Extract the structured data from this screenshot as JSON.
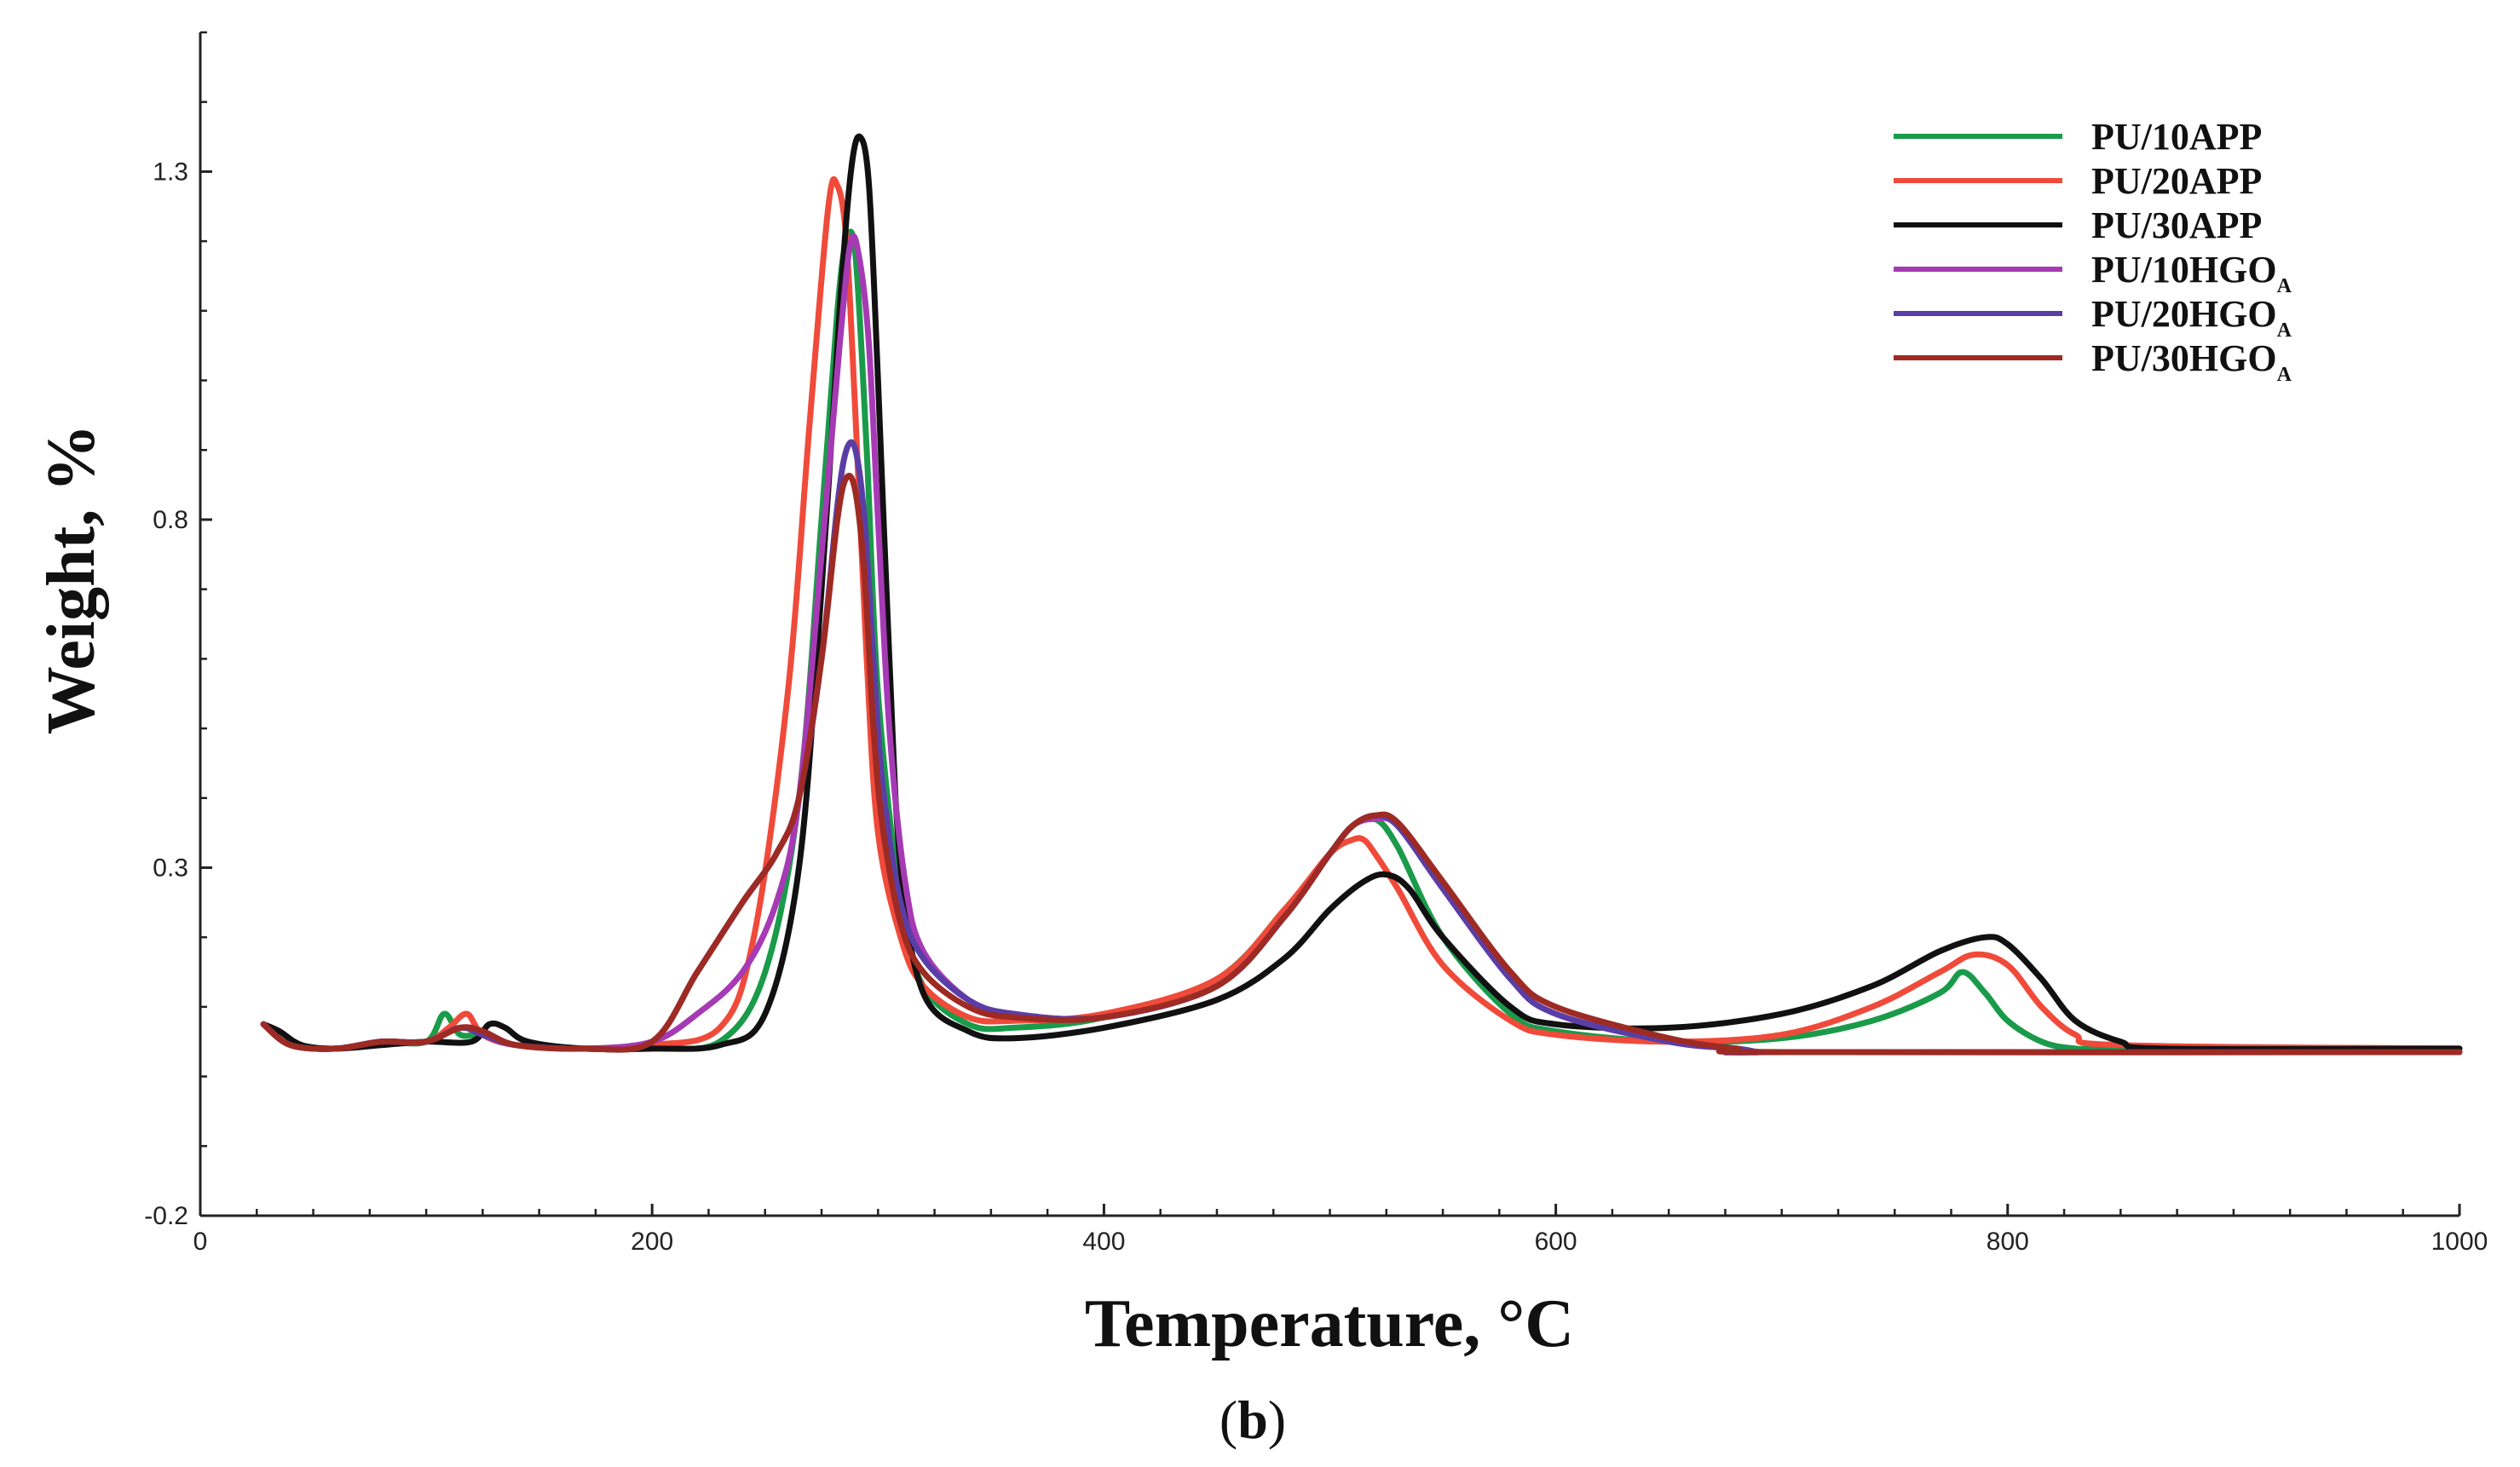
{
  "chart_data": {
    "type": "line",
    "title": "",
    "xlabel": "Temperature, °C",
    "ylabel": "Weight, %",
    "caption_prefix": "(",
    "caption_letter": "b",
    "caption_suffix": ")",
    "xlim": [
      0,
      1000
    ],
    "ylim": [
      -0.2,
      1.5
    ],
    "xticks": [
      0,
      200,
      400,
      600,
      800,
      1000
    ],
    "yticks": [
      -0.2,
      0.3,
      0.8,
      1.3
    ],
    "xtick_labels": [
      "0",
      "200",
      "400",
      "600",
      "800",
      "1000"
    ],
    "ytick_labels": [
      "-0.2",
      "0.3",
      "0.8",
      "1.3"
    ],
    "grid": false,
    "legend_position": "top-right",
    "series": [
      {
        "name": "PU/10APP",
        "label_main": "PU/10APP",
        "label_sub": "",
        "color": "#1a9b4a",
        "x": [
          28,
          40,
          60,
          80,
          100,
          108,
          115,
          125,
          140,
          170,
          200,
          230,
          250,
          265,
          275,
          282,
          286,
          290,
          295,
          300,
          310,
          320,
          340,
          360,
          400,
          450,
          480,
          500,
          510,
          520,
          530,
          550,
          580,
          600,
          650,
          700,
          740,
          770,
          780,
          790,
          800,
          815,
          830,
          850,
          1000
        ],
        "y": [
          0.075,
          0.045,
          0.04,
          0.05,
          0.05,
          0.09,
          0.06,
          0.06,
          0.045,
          0.04,
          0.042,
          0.05,
          0.15,
          0.4,
          0.8,
          1.1,
          1.2,
          1.18,
          0.9,
          0.55,
          0.25,
          0.13,
          0.075,
          0.07,
          0.085,
          0.14,
          0.24,
          0.32,
          0.36,
          0.37,
          0.33,
          0.2,
          0.09,
          0.065,
          0.05,
          0.055,
          0.08,
          0.12,
          0.15,
          0.12,
          0.08,
          0.05,
          0.04,
          0.04,
          0.04
        ]
      },
      {
        "name": "PU/20APP",
        "label_main": "PU/20APP",
        "label_sub": "",
        "color": "#f04a3a",
        "x": [
          28,
          40,
          60,
          80,
          100,
          110,
          118,
          125,
          140,
          170,
          200,
          230,
          245,
          260,
          270,
          278,
          282,
          286,
          290,
          295,
          300,
          310,
          320,
          340,
          360,
          400,
          450,
          480,
          500,
          510,
          515,
          520,
          530,
          550,
          580,
          600,
          650,
          700,
          740,
          770,
          785,
          800,
          815,
          830,
          850,
          1000
        ],
        "y": [
          0.075,
          0.045,
          0.04,
          0.05,
          0.05,
          0.07,
          0.09,
          0.06,
          0.045,
          0.04,
          0.045,
          0.07,
          0.2,
          0.55,
          0.95,
          1.25,
          1.28,
          1.2,
          0.95,
          0.6,
          0.35,
          0.2,
          0.13,
          0.085,
          0.08,
          0.09,
          0.14,
          0.24,
          0.32,
          0.34,
          0.34,
          0.32,
          0.27,
          0.16,
          0.08,
          0.06,
          0.05,
          0.06,
          0.1,
          0.15,
          0.175,
          0.16,
          0.1,
          0.06,
          0.045,
          0.04
        ]
      },
      {
        "name": "PU/30APP",
        "label_main": "PU/30APP",
        "label_sub": "",
        "color": "#111111",
        "x": [
          28,
          35,
          45,
          60,
          80,
          100,
          120,
          128,
          135,
          145,
          170,
          200,
          230,
          250,
          265,
          275,
          283,
          288,
          292,
          296,
          300,
          305,
          310,
          320,
          340,
          360,
          400,
          450,
          480,
          500,
          515,
          525,
          535,
          550,
          580,
          600,
          650,
          700,
          740,
          770,
          790,
          800,
          815,
          830,
          850,
          870,
          1000
        ],
        "y": [
          0.075,
          0.065,
          0.045,
          0.04,
          0.045,
          0.05,
          0.05,
          0.075,
          0.07,
          0.05,
          0.04,
          0.04,
          0.045,
          0.09,
          0.3,
          0.7,
          1.1,
          1.3,
          1.35,
          1.28,
          1.0,
          0.6,
          0.3,
          0.12,
          0.065,
          0.055,
          0.07,
          0.11,
          0.17,
          0.24,
          0.28,
          0.29,
          0.27,
          0.2,
          0.1,
          0.075,
          0.07,
          0.09,
          0.13,
          0.18,
          0.2,
          0.19,
          0.14,
          0.08,
          0.05,
          0.04,
          0.04
        ]
      },
      {
        "name": "PU/10HGOA",
        "label_main": "PU/10HGO",
        "label_sub": "A",
        "color": "#a63ab4",
        "x": [
          28,
          40,
          60,
          80,
          100,
          115,
          125,
          140,
          170,
          200,
          220,
          240,
          255,
          265,
          275,
          283,
          288,
          292,
          296,
          300,
          305,
          312,
          320,
          340,
          360,
          400,
          450,
          480,
          500,
          510,
          520,
          530,
          550,
          580,
          600,
          650,
          680,
          690,
          700,
          1000
        ],
        "y": [
          0.075,
          0.045,
          0.04,
          0.05,
          0.05,
          0.07,
          0.06,
          0.045,
          0.04,
          0.05,
          0.09,
          0.15,
          0.25,
          0.4,
          0.75,
          1.05,
          1.2,
          1.17,
          1.05,
          0.8,
          0.5,
          0.28,
          0.18,
          0.11,
          0.09,
          0.085,
          0.13,
          0.23,
          0.32,
          0.36,
          0.37,
          0.36,
          0.27,
          0.14,
          0.09,
          0.05,
          0.04,
          0.035,
          0.035,
          0.035
        ]
      },
      {
        "name": "PU/20HGOA",
        "label_main": "PU/20HGO",
        "label_sub": "A",
        "color": "#5a3ea6",
        "x": [
          28,
          40,
          60,
          80,
          100,
          115,
          125,
          140,
          170,
          200,
          220,
          240,
          255,
          265,
          275,
          282,
          286,
          290,
          294,
          298,
          302,
          310,
          320,
          340,
          360,
          400,
          450,
          480,
          500,
          510,
          520,
          530,
          550,
          580,
          600,
          650,
          680,
          690,
          700,
          1000
        ],
        "y": [
          0.075,
          0.045,
          0.04,
          0.05,
          0.05,
          0.07,
          0.06,
          0.045,
          0.04,
          0.05,
          0.15,
          0.25,
          0.32,
          0.4,
          0.6,
          0.82,
          0.9,
          0.9,
          0.8,
          0.6,
          0.42,
          0.25,
          0.17,
          0.11,
          0.09,
          0.085,
          0.13,
          0.23,
          0.32,
          0.36,
          0.375,
          0.36,
          0.27,
          0.14,
          0.09,
          0.05,
          0.04,
          0.035,
          0.035,
          0.035
        ]
      },
      {
        "name": "PU/30HGOA",
        "label_main": "PU/30HGO",
        "label_sub": "A",
        "color": "#9e2a24",
        "x": [
          28,
          40,
          60,
          80,
          100,
          115,
          125,
          140,
          170,
          200,
          220,
          240,
          255,
          265,
          275,
          282,
          286,
          290,
          294,
          298,
          302,
          310,
          320,
          340,
          360,
          400,
          450,
          480,
          500,
          510,
          520,
          530,
          550,
          580,
          600,
          650,
          680,
          700,
          1000
        ],
        "y": [
          0.075,
          0.045,
          0.04,
          0.05,
          0.05,
          0.07,
          0.065,
          0.045,
          0.04,
          0.05,
          0.15,
          0.25,
          0.32,
          0.4,
          0.6,
          0.8,
          0.86,
          0.84,
          0.72,
          0.5,
          0.36,
          0.22,
          0.15,
          0.1,
          0.085,
          0.085,
          0.13,
          0.23,
          0.32,
          0.36,
          0.375,
          0.365,
          0.28,
          0.15,
          0.1,
          0.055,
          0.04,
          0.035,
          0.035
        ]
      }
    ]
  }
}
